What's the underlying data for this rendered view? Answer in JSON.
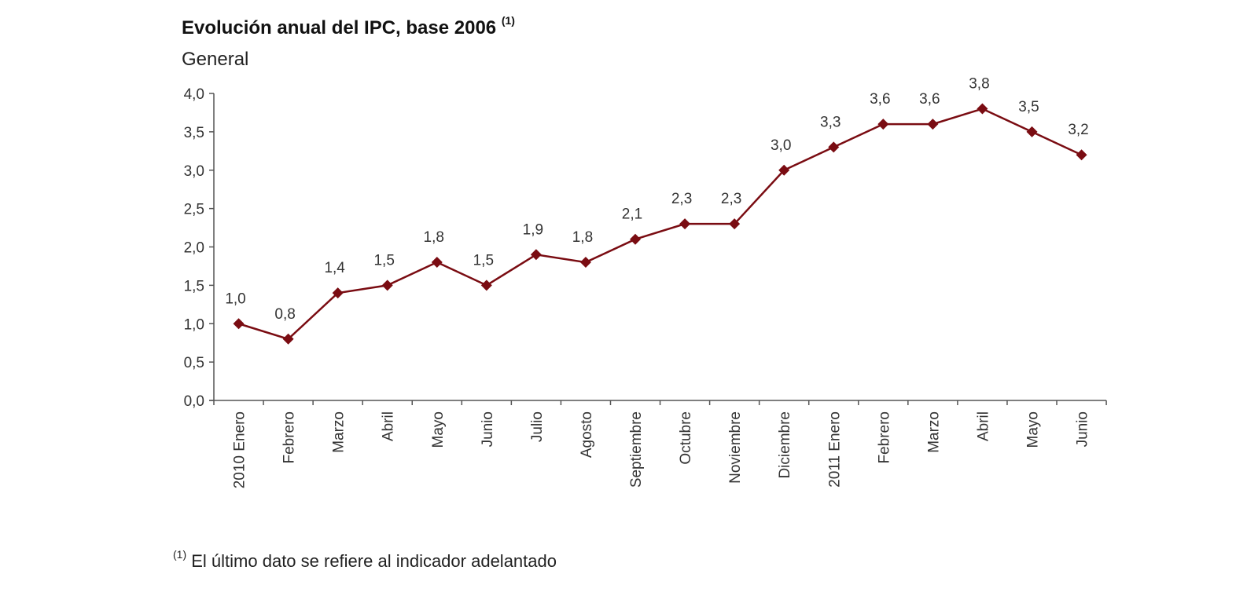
{
  "chart_data": {
    "type": "line",
    "title": "Evolución anual del IPC, base 2006",
    "title_footnote_marker": "(1)",
    "subtitle": "General",
    "categories": [
      "2010 Enero",
      "Febrero",
      "Marzo",
      "Abril",
      "Mayo",
      "Junio",
      "Julio",
      "Agosto",
      "Septiembre",
      "Octubre",
      "Noviembre",
      "Diciembre",
      "2011 Enero",
      "Febrero",
      "Marzo",
      "Abril",
      "Mayo",
      "Junio"
    ],
    "values": [
      1.0,
      0.8,
      1.4,
      1.5,
      1.8,
      1.5,
      1.9,
      1.8,
      2.1,
      2.3,
      2.3,
      3.0,
      3.3,
      3.6,
      3.6,
      3.8,
      3.5,
      3.2
    ],
    "data_labels": [
      "1,0",
      "0,8",
      "1,4",
      "1,5",
      "1,8",
      "1,5",
      "1,9",
      "1,8",
      "2,1",
      "2,3",
      "2,3",
      "3,0",
      "3,3",
      "3,6",
      "3,6",
      "3,8",
      "3,5",
      "3,2"
    ],
    "yticks": [
      "0,0",
      "0,5",
      "1,0",
      "1,5",
      "2,0",
      "2,5",
      "3,0",
      "3,5",
      "4,0"
    ],
    "ylim": [
      0,
      4
    ],
    "xlabel": "",
    "ylabel": "",
    "grid": false,
    "marker": "diamond",
    "line_color": "#7a0c12",
    "footnote_marker": "(1)",
    "footnote": "El último dato se refiere al indicador adelantado"
  }
}
